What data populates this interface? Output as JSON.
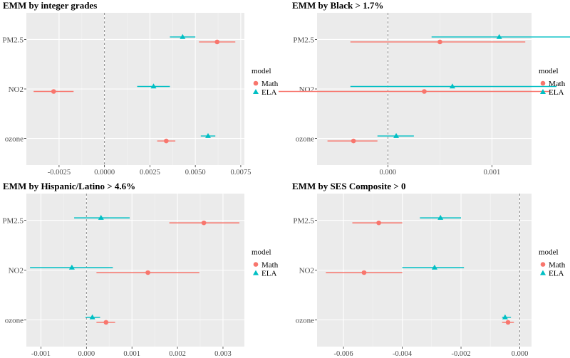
{
  "chart_data": [
    {
      "type": "forest",
      "title": "EMM by integer grades",
      "categories": [
        "PM2.5",
        "NO2",
        "ozone"
      ],
      "xlim": [
        -0.0043,
        0.0077
      ],
      "xticks": [
        -0.0025,
        0.0,
        0.0025,
        0.005,
        0.0075
      ],
      "xtick_labels": [
        "-0.0025",
        "0.0000",
        "0.0025",
        "0.0050",
        "0.0075"
      ],
      "reference_line": 0,
      "legend": {
        "title": "model",
        "entries": [
          "Math",
          "ELA"
        ]
      },
      "series": [
        {
          "name": "Math",
          "color": "#f8766d",
          "marker": "circle",
          "points": [
            {
              "category": "PM2.5",
              "estimate": 0.0062,
              "lower": 0.0052,
              "upper": 0.0072
            },
            {
              "category": "NO2",
              "estimate": -0.0028,
              "lower": -0.0039,
              "upper": -0.0017
            },
            {
              "category": "ozone",
              "estimate": 0.0034,
              "lower": 0.0029,
              "upper": 0.0039
            }
          ]
        },
        {
          "name": "ELA",
          "color": "#00bfc4",
          "marker": "triangle",
          "points": [
            {
              "category": "PM2.5",
              "estimate": 0.0043,
              "lower": 0.0036,
              "upper": 0.005
            },
            {
              "category": "NO2",
              "estimate": 0.0027,
              "lower": 0.0018,
              "upper": 0.0036
            },
            {
              "category": "ozone",
              "estimate": 0.0057,
              "lower": 0.0053,
              "upper": 0.0061
            }
          ]
        }
      ]
    },
    {
      "type": "forest",
      "title": "EMM by Black > 1.7%",
      "categories": [
        "PM2.5",
        "NO2",
        "ozone"
      ],
      "xlim": [
        -0.00068,
        0.00138
      ],
      "xticks": [
        0.0,
        0.001
      ],
      "xtick_labels": [
        "0.000",
        "0.001"
      ],
      "reference_line": 0,
      "legend": {
        "title": "model",
        "entries": [
          "Math",
          "ELA"
        ]
      },
      "series": [
        {
          "name": "Math",
          "color": "#f8766d",
          "marker": "circle",
          "points": [
            {
              "category": "PM2.5",
              "estimate": 0.0005,
              "lower": -0.00036,
              "upper": 0.00132
            },
            {
              "category": "NO2",
              "estimate": 0.00035,
              "lower": -0.00105,
              "upper": 0.00155
            },
            {
              "category": "ozone",
              "estimate": -0.00033,
              "lower": -0.00058,
              "upper": -0.0001
            }
          ]
        },
        {
          "name": "ELA",
          "color": "#00bfc4",
          "marker": "triangle",
          "points": [
            {
              "category": "PM2.5",
              "estimate": 0.00107,
              "lower": 0.00042,
              "upper": 0.00182
            },
            {
              "category": "NO2",
              "estimate": 0.00062,
              "lower": -0.00036,
              "upper": 0.00162
            },
            {
              "category": "ozone",
              "estimate": 8e-05,
              "lower": -0.0001,
              "upper": 0.00025
            }
          ]
        }
      ]
    },
    {
      "type": "forest",
      "title": "EMM by Hispanic/Latino > 4.6%",
      "categories": [
        "PM2.5",
        "NO2",
        "ozone"
      ],
      "xlim": [
        -0.00132,
        0.00347
      ],
      "xticks": [
        -0.001,
        0.0,
        0.001,
        0.002,
        0.003
      ],
      "xtick_labels": [
        "-0.001",
        "0.000",
        "0.001",
        "0.002",
        "0.003"
      ],
      "reference_line": 0,
      "legend": {
        "title": "model",
        "entries": [
          "Math",
          "ELA"
        ]
      },
      "series": [
        {
          "name": "Math",
          "color": "#f8766d",
          "marker": "circle",
          "points": [
            {
              "category": "PM2.5",
              "estimate": 0.00258,
              "lower": 0.00182,
              "upper": 0.00336
            },
            {
              "category": "NO2",
              "estimate": 0.00135,
              "lower": 0.00022,
              "upper": 0.00248
            },
            {
              "category": "ozone",
              "estimate": 0.00043,
              "lower": 0.00022,
              "upper": 0.00063
            }
          ]
        },
        {
          "name": "ELA",
          "color": "#00bfc4",
          "marker": "triangle",
          "points": [
            {
              "category": "PM2.5",
              "estimate": 0.00032,
              "lower": -0.00027,
              "upper": 0.00095
            },
            {
              "category": "NO2",
              "estimate": -0.00032,
              "lower": -0.00124,
              "upper": 0.00058
            },
            {
              "category": "ozone",
              "estimate": 0.00013,
              "lower": -2e-05,
              "upper": 0.0003
            }
          ]
        }
      ]
    },
    {
      "type": "forest",
      "title": "EMM by SES Composite > 0",
      "categories": [
        "PM2.5",
        "NO2",
        "ozone"
      ],
      "xlim": [
        -0.0069,
        0.0004
      ],
      "xticks": [
        -0.006,
        -0.004,
        -0.002,
        0.0
      ],
      "xtick_labels": [
        "-0.006",
        "-0.004",
        "-0.002",
        "0.000"
      ],
      "reference_line": 0,
      "legend": {
        "title": "model",
        "entries": [
          "Math",
          "ELA"
        ]
      },
      "series": [
        {
          "name": "Math",
          "color": "#f8766d",
          "marker": "circle",
          "points": [
            {
              "category": "PM2.5",
              "estimate": -0.0048,
              "lower": -0.0057,
              "upper": -0.004
            },
            {
              "category": "NO2",
              "estimate": -0.0053,
              "lower": -0.0066,
              "upper": -0.004
            },
            {
              "category": "ozone",
              "estimate": -0.0004,
              "lower": -0.0006,
              "upper": -0.0002
            }
          ]
        },
        {
          "name": "ELA",
          "color": "#00bfc4",
          "marker": "triangle",
          "points": [
            {
              "category": "PM2.5",
              "estimate": -0.0027,
              "lower": -0.0034,
              "upper": -0.002
            },
            {
              "category": "NO2",
              "estimate": -0.0029,
              "lower": -0.004,
              "upper": -0.0019
            },
            {
              "category": "ozone",
              "estimate": -0.0005,
              "lower": -0.0006,
              "upper": -0.0003
            }
          ]
        }
      ]
    }
  ]
}
